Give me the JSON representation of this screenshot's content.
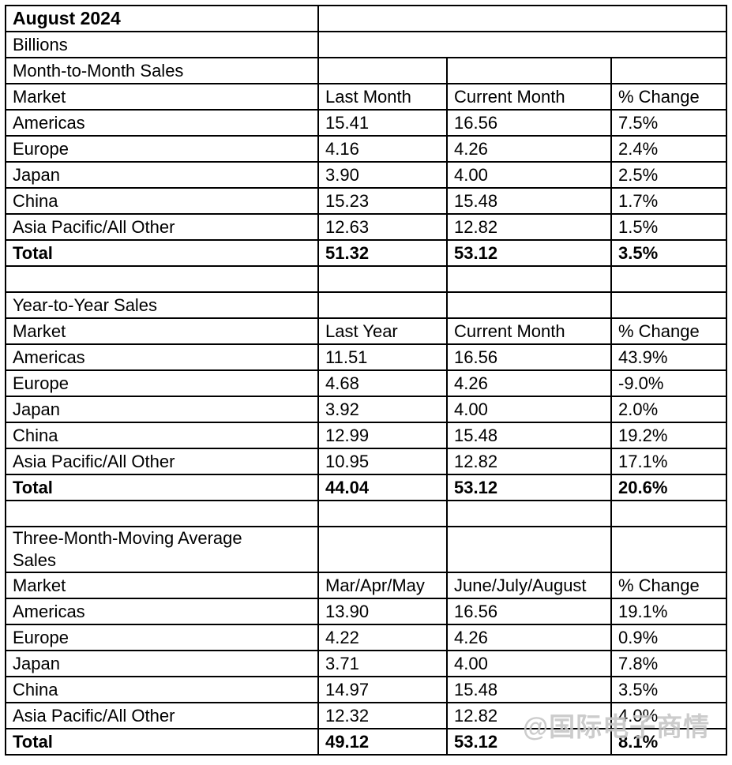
{
  "meta": {
    "title": "August 2024",
    "unit_label": "Billions"
  },
  "watermark": {
    "text": "@国际电子商情",
    "color": "#c6c6c6"
  },
  "colors": {
    "border": "#000000",
    "text": "#000000",
    "background": "#ffffff"
  },
  "chart_data": [
    {
      "type": "table",
      "title": "Month-to-Month Sales",
      "columns": [
        "Market",
        "Last Month",
        "Current Month",
        "% Change"
      ],
      "rows": [
        [
          "Americas",
          "15.41",
          "16.56",
          "7.5%"
        ],
        [
          "Europe",
          "4.16",
          "4.26",
          "2.4%"
        ],
        [
          "Japan",
          "3.90",
          "4.00",
          "2.5%"
        ],
        [
          "China",
          "15.23",
          "15.48",
          "1.7%"
        ],
        [
          "Asia Pacific/All Other",
          "12.63",
          "12.82",
          "1.5%"
        ]
      ],
      "total_row": [
        "Total",
        "51.32",
        "53.12",
        "3.5%"
      ]
    },
    {
      "type": "table",
      "title": "Year-to-Year Sales",
      "columns": [
        "Market",
        "Last Year",
        "Current Month",
        "% Change"
      ],
      "rows": [
        [
          "Americas",
          "11.51",
          "16.56",
          "43.9%"
        ],
        [
          "Europe",
          "4.68",
          "4.26",
          "-9.0%"
        ],
        [
          "Japan",
          "3.92",
          "4.00",
          "2.0%"
        ],
        [
          "China",
          "12.99",
          "15.48",
          "19.2%"
        ],
        [
          "Asia Pacific/All Other",
          "10.95",
          "12.82",
          "17.1%"
        ]
      ],
      "total_row": [
        "Total",
        "44.04",
        "53.12",
        "20.6%"
      ]
    },
    {
      "type": "table",
      "title": "Three-Month-Moving Average Sales",
      "columns": [
        "Market",
        "Mar/Apr/May",
        "June/July/August",
        "% Change"
      ],
      "rows": [
        [
          "Americas",
          "13.90",
          "16.56",
          "19.1%"
        ],
        [
          "Europe",
          "4.22",
          "4.26",
          "0.9%"
        ],
        [
          "Japan",
          "3.71",
          "4.00",
          "7.8%"
        ],
        [
          "China",
          "14.97",
          "15.48",
          "3.5%"
        ],
        [
          "Asia Pacific/All Other",
          "12.32",
          "12.82",
          "4.0%"
        ]
      ],
      "total_row": [
        "Total",
        "49.12",
        "53.12",
        "8.1%"
      ]
    }
  ]
}
